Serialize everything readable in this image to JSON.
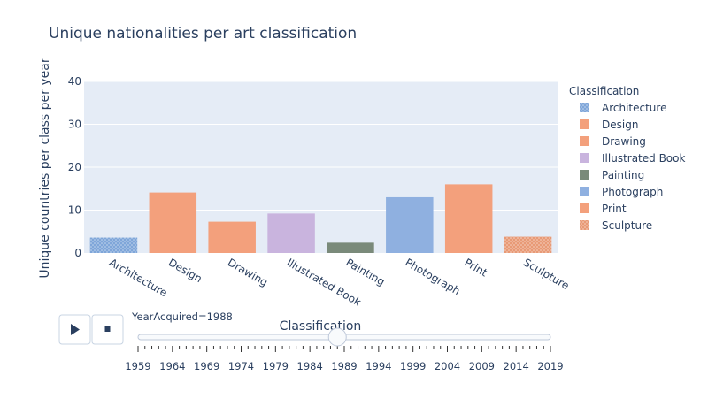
{
  "chart_data": {
    "type": "bar",
    "title": "Unique nationalities per art classification",
    "xlabel": "Classification",
    "ylabel": "Unique countries per class per year",
    "ylim": [
      0,
      40
    ],
    "yticks": [
      0,
      10,
      20,
      30,
      40
    ],
    "grid": true,
    "categories": [
      "Architecture",
      "Design",
      "Drawing",
      "Illustrated Book",
      "Painting",
      "Photograph",
      "Print",
      "Sculpture"
    ],
    "values": [
      3.6,
      14.1,
      7.3,
      9.2,
      2.4,
      13.0,
      16.0,
      3.8
    ],
    "colors": [
      "#7fa6d9",
      "#f3a07c",
      "#f3a07c",
      "#c9b4de",
      "#7a8a7a",
      "#8fb0e0",
      "#f3a07c",
      "#e89a76"
    ],
    "patterned": [
      true,
      false,
      false,
      false,
      false,
      false,
      false,
      true
    ],
    "legend": {
      "title": "Classification",
      "placement": "right",
      "entries": [
        "Architecture",
        "Design",
        "Drawing",
        "Illustrated Book",
        "Painting",
        "Photograph",
        "Print",
        "Sculpture"
      ]
    }
  },
  "controls": {
    "play_icon": "play-icon",
    "stop_icon": "stop-icon"
  },
  "slider": {
    "current_label": "YearAcquired=1988",
    "current_value": 1988,
    "min": 1959,
    "max": 2019,
    "ticks": [
      "1959",
      "1964",
      "1969",
      "1974",
      "1979",
      "1984",
      "1989",
      "1994",
      "1999",
      "2004",
      "2009",
      "2014",
      "2019"
    ]
  }
}
